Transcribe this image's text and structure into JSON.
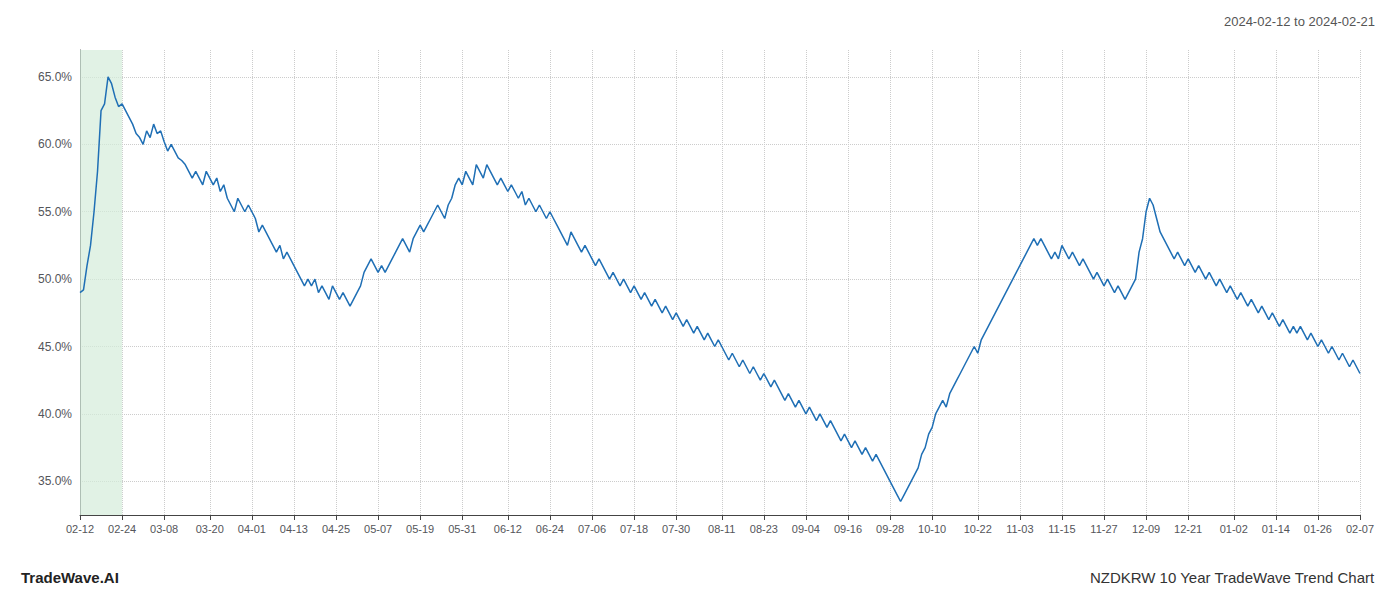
{
  "chart_data": {
    "type": "line",
    "title": "NZDKRW 10 Year TradeWave Trend Chart",
    "subtitle": "2024-02-12 to 2024-02-21",
    "annotations": [
      "TradeWave.AI"
    ],
    "color": "#1f6fb5",
    "grid": true,
    "highlight": {
      "from": "02-12",
      "to": "02-24",
      "color": "#d4edda"
    },
    "ylim": [
      32.5,
      67.0
    ],
    "yticks": [
      {
        "value": 35.0,
        "label": "35.0%"
      },
      {
        "value": 40.0,
        "label": "40.0%"
      },
      {
        "value": 45.0,
        "label": "45.0%"
      },
      {
        "value": 50.0,
        "label": "50.0%"
      },
      {
        "value": 55.0,
        "label": "55.0%"
      },
      {
        "value": 60.0,
        "label": "60.0%"
      },
      {
        "value": 65.0,
        "label": "65.0%"
      }
    ],
    "categories": [
      "02-12",
      null,
      null,
      null,
      null,
      null,
      null,
      null,
      null,
      null,
      null,
      null,
      "02-24",
      null,
      null,
      null,
      null,
      null,
      null,
      null,
      null,
      null,
      null,
      null,
      "03-08",
      null,
      null,
      null,
      null,
      null,
      null,
      null,
      null,
      null,
      null,
      null,
      null,
      "03-20",
      null,
      null,
      null,
      null,
      null,
      null,
      null,
      null,
      null,
      null,
      null,
      "04-01",
      null,
      null,
      null,
      null,
      null,
      null,
      null,
      null,
      null,
      null,
      null,
      "04-13",
      null,
      null,
      null,
      null,
      null,
      null,
      null,
      null,
      null,
      null,
      null,
      "04-25",
      null,
      null,
      null,
      null,
      null,
      null,
      null,
      null,
      null,
      null,
      null,
      "05-07",
      null,
      null,
      null,
      null,
      null,
      null,
      null,
      null,
      null,
      null,
      null,
      "05-19",
      null,
      null,
      null,
      null,
      null,
      null,
      null,
      null,
      null,
      null,
      null,
      "05-31",
      null,
      null,
      null,
      null,
      null,
      null,
      null,
      null,
      null,
      null,
      null,
      null,
      "06-12",
      null,
      null,
      null,
      null,
      null,
      null,
      null,
      null,
      null,
      null,
      null,
      "06-24",
      null,
      null,
      null,
      null,
      null,
      null,
      null,
      null,
      null,
      null,
      null,
      "07-06",
      null,
      null,
      null,
      null,
      null,
      null,
      null,
      null,
      null,
      null,
      null,
      "07-18",
      null,
      null,
      null,
      null,
      null,
      null,
      null,
      null,
      null,
      null,
      null,
      "07-30",
      null,
      null,
      null,
      null,
      null,
      null,
      null,
      null,
      null,
      null,
      null,
      null,
      "08-11",
      null,
      null,
      null,
      null,
      null,
      null,
      null,
      null,
      null,
      null,
      null,
      "08-23",
      null,
      null,
      null,
      null,
      null,
      null,
      null,
      null,
      null,
      null,
      null,
      "09-04",
      null,
      null,
      null,
      null,
      null,
      null,
      null,
      null,
      null,
      null,
      null,
      "09-16",
      null,
      null,
      null,
      null,
      null,
      null,
      null,
      null,
      null,
      null,
      null,
      "09-28",
      null,
      null,
      null,
      null,
      null,
      null,
      null,
      null,
      null,
      null,
      null,
      "10-10",
      null,
      null,
      null,
      null,
      null,
      null,
      null,
      null,
      null,
      null,
      null,
      null,
      "10-22",
      null,
      null,
      null,
      null,
      null,
      null,
      null,
      null,
      null,
      null,
      null,
      "11-03",
      null,
      null,
      null,
      null,
      null,
      null,
      null,
      null,
      null,
      null,
      null,
      "11-15",
      null,
      null,
      null,
      null,
      null,
      null,
      null,
      null,
      null,
      null,
      null,
      "11-27",
      null,
      null,
      null,
      null,
      null,
      null,
      null,
      null,
      null,
      null,
      null,
      "12-09",
      null,
      null,
      null,
      null,
      null,
      null,
      null,
      null,
      null,
      null,
      null,
      "12-21",
      null,
      null,
      null,
      null,
      null,
      null,
      null,
      null,
      null,
      null,
      null,
      null,
      "01-02",
      null,
      null,
      null,
      null,
      null,
      null,
      null,
      null,
      null,
      null,
      null,
      "01-14",
      null,
      null,
      null,
      null,
      null,
      null,
      null,
      null,
      null,
      null,
      null,
      "01-26",
      null,
      null,
      null,
      null,
      null,
      null,
      null,
      null,
      null,
      null,
      null,
      "02-07"
    ],
    "values": [
      49.0,
      49.2,
      51.0,
      52.5,
      55.0,
      58.0,
      62.5,
      63.0,
      65.0,
      64.5,
      63.5,
      62.8,
      63.0,
      62.5,
      62.0,
      61.5,
      60.8,
      60.5,
      60.0,
      61.0,
      60.5,
      61.5,
      60.8,
      61.0,
      60.2,
      59.5,
      60.0,
      59.5,
      59.0,
      58.8,
      58.5,
      58.0,
      57.5,
      58.0,
      57.5,
      57.0,
      58.0,
      57.5,
      57.0,
      57.5,
      56.5,
      57.0,
      56.0,
      55.5,
      55.0,
      56.0,
      55.5,
      55.0,
      55.5,
      55.0,
      54.5,
      53.5,
      54.0,
      53.5,
      53.0,
      52.5,
      52.0,
      52.5,
      51.5,
      52.0,
      51.5,
      51.0,
      50.5,
      50.0,
      49.5,
      50.0,
      49.5,
      50.0,
      49.0,
      49.5,
      49.0,
      48.5,
      49.5,
      49.0,
      48.5,
      49.0,
      48.5,
      48.0,
      48.5,
      49.0,
      49.5,
      50.5,
      51.0,
      51.5,
      51.0,
      50.5,
      51.0,
      50.5,
      51.0,
      51.5,
      52.0,
      52.5,
      53.0,
      52.5,
      52.0,
      53.0,
      53.5,
      54.0,
      53.5,
      54.0,
      54.5,
      55.0,
      55.5,
      55.0,
      54.5,
      55.5,
      56.0,
      57.0,
      57.5,
      57.0,
      58.0,
      57.5,
      57.0,
      58.5,
      58.0,
      57.5,
      58.5,
      58.0,
      57.5,
      57.0,
      57.5,
      57.0,
      56.5,
      57.0,
      56.5,
      56.0,
      56.5,
      55.5,
      56.0,
      55.5,
      55.0,
      55.5,
      55.0,
      54.5,
      55.0,
      54.5,
      54.0,
      53.5,
      53.0,
      52.5,
      53.5,
      53.0,
      52.5,
      52.0,
      52.5,
      52.0,
      51.5,
      51.0,
      51.5,
      51.0,
      50.5,
      50.0,
      50.5,
      50.0,
      49.5,
      50.0,
      49.5,
      49.0,
      49.5,
      49.0,
      48.5,
      49.0,
      48.5,
      48.0,
      48.5,
      48.0,
      47.5,
      48.0,
      47.5,
      47.0,
      47.5,
      47.0,
      46.5,
      47.0,
      46.5,
      46.0,
      46.5,
      46.0,
      45.5,
      46.0,
      45.5,
      45.0,
      45.5,
      45.0,
      44.5,
      44.0,
      44.5,
      44.0,
      43.5,
      44.0,
      43.5,
      43.0,
      43.5,
      43.0,
      42.5,
      43.0,
      42.5,
      42.0,
      42.5,
      42.0,
      41.5,
      41.0,
      41.5,
      41.0,
      40.5,
      41.0,
      40.5,
      40.0,
      40.5,
      40.0,
      39.5,
      40.0,
      39.5,
      39.0,
      39.5,
      39.0,
      38.5,
      38.0,
      38.5,
      38.0,
      37.5,
      38.0,
      37.5,
      37.0,
      37.5,
      37.0,
      36.5,
      37.0,
      36.5,
      36.0,
      35.5,
      35.0,
      34.5,
      34.0,
      33.5,
      34.0,
      34.5,
      35.0,
      35.5,
      36.0,
      37.0,
      37.5,
      38.5,
      39.0,
      40.0,
      40.5,
      41.0,
      40.5,
      41.5,
      42.0,
      42.5,
      43.0,
      43.5,
      44.0,
      44.5,
      45.0,
      44.5,
      45.5,
      46.0,
      46.5,
      47.0,
      47.5,
      48.0,
      48.5,
      49.0,
      49.5,
      50.0,
      50.5,
      51.0,
      51.5,
      52.0,
      52.5,
      53.0,
      52.5,
      53.0,
      52.5,
      52.0,
      51.5,
      52.0,
      51.5,
      52.5,
      52.0,
      51.5,
      52.0,
      51.5,
      51.0,
      51.5,
      51.0,
      50.5,
      50.0,
      50.5,
      50.0,
      49.5,
      50.0,
      49.5,
      49.0,
      49.5,
      49.0,
      48.5,
      49.0,
      49.5,
      50.0,
      52.0,
      53.0,
      55.0,
      56.0,
      55.5,
      54.5,
      53.5,
      53.0,
      52.5,
      52.0,
      51.5,
      52.0,
      51.5,
      51.0,
      51.5,
      51.0,
      50.5,
      51.0,
      50.5,
      50.0,
      50.5,
      50.0,
      49.5,
      50.0,
      49.5,
      49.0,
      49.5,
      49.0,
      48.5,
      49.0,
      48.5,
      48.0,
      48.5,
      48.0,
      47.5,
      48.0,
      47.5,
      47.0,
      47.5,
      47.0,
      46.5,
      47.0,
      46.5,
      46.0,
      46.5,
      46.0,
      46.5,
      46.0,
      45.5,
      46.0,
      45.5,
      45.0,
      45.5,
      45.0,
      44.5,
      45.0,
      44.5,
      44.0,
      44.5,
      44.0,
      43.5,
      44.0,
      43.5,
      43.0
    ]
  }
}
